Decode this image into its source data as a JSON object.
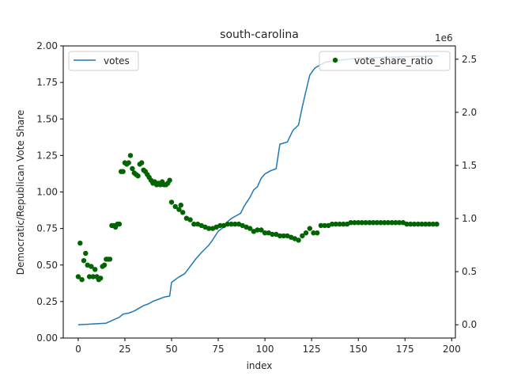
{
  "chart_data": {
    "type": "line+scatter",
    "title": "south-carolina",
    "xlabel": "index",
    "ylabel_left": "Democratic/Republican Vote Share",
    "ylabel_right": "",
    "right_axis_multiplier": "1e6",
    "xlim": [
      -8,
      202
    ],
    "ylim_left": [
      0,
      2.0
    ],
    "ylim_right": [
      -0.125,
      2.625
    ],
    "x_ticks": [
      0,
      25,
      50,
      75,
      100,
      125,
      150,
      175,
      200
    ],
    "x_tick_labels": [
      "0",
      "25",
      "50",
      "75",
      "100",
      "125",
      "150",
      "175",
      "200"
    ],
    "y_left_ticks": [
      0,
      0.25,
      0.5,
      0.75,
      1.0,
      1.25,
      1.5,
      1.75,
      2.0
    ],
    "y_left_tick_labels": [
      "0.00",
      "0.25",
      "0.50",
      "0.75",
      "1.00",
      "1.25",
      "1.50",
      "1.75",
      "2.00"
    ],
    "y_right_ticks": [
      0,
      0.5,
      1.0,
      1.5,
      2.0,
      2.5
    ],
    "y_right_tick_labels": [
      "0.0",
      "0.5",
      "1.0",
      "1.5",
      "2.0",
      "2.5"
    ],
    "grid": false,
    "series": [
      {
        "name": "votes",
        "type": "line",
        "axis": "right",
        "color": "#1f77b4",
        "x": [
          0,
          5,
          10,
          15,
          18,
          22,
          24,
          27,
          30,
          33,
          35,
          38,
          40,
          43,
          46,
          49,
          50,
          54,
          57,
          60,
          63,
          66,
          70,
          72,
          75,
          78,
          80,
          82,
          85,
          87,
          89,
          92,
          94,
          96,
          98,
          100,
          103,
          106,
          108,
          112,
          115,
          118,
          120,
          122,
          124,
          126,
          127,
          130,
          132,
          135,
          140,
          145,
          150,
          170,
          190,
          193
        ],
        "y": [
          0.0,
          0.005,
          0.01,
          0.015,
          0.04,
          0.07,
          0.1,
          0.11,
          0.13,
          0.16,
          0.18,
          0.2,
          0.22,
          0.24,
          0.26,
          0.27,
          0.4,
          0.45,
          0.48,
          0.55,
          0.62,
          0.68,
          0.75,
          0.8,
          0.88,
          0.92,
          0.97,
          1.0,
          1.03,
          1.05,
          1.12,
          1.2,
          1.27,
          1.3,
          1.38,
          1.42,
          1.45,
          1.47,
          1.7,
          1.72,
          1.83,
          1.88,
          2.05,
          2.2,
          2.35,
          2.4,
          2.42,
          2.45,
          2.47,
          2.48,
          2.49,
          2.5,
          2.51,
          2.52,
          2.53,
          2.53
        ]
      },
      {
        "name": "vote_share_ratio",
        "type": "scatter",
        "axis": "left",
        "color": "#006400",
        "x": [
          0,
          1,
          2,
          3,
          4,
          5,
          6,
          7,
          8,
          9,
          10,
          11,
          12,
          13,
          14,
          15,
          16,
          17,
          18,
          19,
          20,
          21,
          22,
          23,
          24,
          25,
          26,
          27,
          28,
          29,
          30,
          31,
          32,
          33,
          34,
          35,
          36,
          37,
          38,
          39,
          40,
          41,
          42,
          43,
          44,
          45,
          46,
          47,
          48,
          49,
          50,
          52,
          54,
          55,
          56,
          58,
          60,
          62,
          64,
          66,
          68,
          70,
          72,
          74,
          76,
          78,
          80,
          82,
          84,
          86,
          88,
          90,
          92,
          94,
          96,
          98,
          100,
          102,
          104,
          106,
          108,
          110,
          112,
          114,
          116,
          118,
          120,
          122,
          124,
          126,
          128,
          130,
          132,
          134,
          136,
          138,
          140,
          142,
          144,
          146,
          148,
          150,
          152,
          154,
          156,
          158,
          160,
          162,
          164,
          166,
          168,
          170,
          172,
          174,
          176,
          178,
          180,
          182,
          184,
          186,
          188,
          190,
          192
        ],
        "y": [
          0.42,
          0.65,
          0.4,
          0.53,
          0.58,
          0.5,
          0.42,
          0.49,
          0.42,
          0.47,
          0.42,
          0.4,
          0.41,
          0.49,
          0.5,
          0.54,
          0.54,
          0.54,
          0.77,
          0.77,
          0.76,
          0.78,
          0.78,
          1.14,
          1.14,
          1.2,
          1.19,
          1.2,
          1.25,
          1.16,
          1.13,
          1.12,
          1.11,
          1.19,
          1.2,
          1.15,
          1.14,
          1.12,
          1.1,
          1.08,
          1.06,
          1.07,
          1.05,
          1.06,
          1.05,
          1.07,
          1.05,
          1.05,
          1.06,
          1.08,
          0.93,
          0.9,
          0.88,
          0.91,
          0.86,
          0.82,
          0.81,
          0.78,
          0.78,
          0.77,
          0.76,
          0.75,
          0.75,
          0.76,
          0.77,
          0.77,
          0.78,
          0.78,
          0.78,
          0.78,
          0.77,
          0.76,
          0.75,
          0.73,
          0.74,
          0.74,
          0.72,
          0.72,
          0.71,
          0.71,
          0.7,
          0.7,
          0.7,
          0.69,
          0.68,
          0.67,
          0.7,
          0.72,
          0.75,
          0.72,
          0.72,
          0.77,
          0.77,
          0.77,
          0.78,
          0.78,
          0.78,
          0.78,
          0.78,
          0.79,
          0.79,
          0.79,
          0.79,
          0.79,
          0.79,
          0.79,
          0.79,
          0.79,
          0.79,
          0.79,
          0.79,
          0.79,
          0.79,
          0.79,
          0.78,
          0.78,
          0.78,
          0.78,
          0.78,
          0.78,
          0.78,
          0.78,
          0.78
        ]
      }
    ],
    "legend": [
      {
        "label": "votes",
        "placement": "upper-left"
      },
      {
        "label": "vote_share_ratio",
        "placement": "upper-right"
      }
    ]
  }
}
